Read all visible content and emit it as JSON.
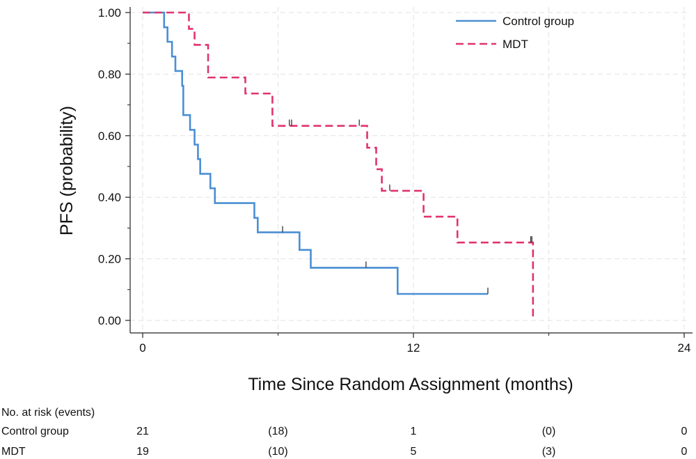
{
  "chart_data": {
    "type": "line",
    "title": "",
    "xlabel": "Time Since Random Assignment (months)",
    "ylabel": "PFS (probability)",
    "xlim": [
      0,
      24
    ],
    "ylim": [
      0,
      1
    ],
    "x_ticks": [
      0,
      12,
      24
    ],
    "x_minor_ticks": [
      6,
      18
    ],
    "y_ticks": [
      0.0,
      0.2,
      0.4,
      0.6,
      0.8,
      1.0
    ],
    "x_tick_labels": [
      "0",
      "12",
      "24"
    ],
    "y_tick_labels": [
      "0.00",
      "0.20",
      "0.40",
      "0.60",
      "0.80",
      "1.00"
    ],
    "grid": true,
    "legend_position": "top-right",
    "series": [
      {
        "name": "Control group",
        "style": "solid",
        "color": "#4a8fd4",
        "steps": [
          [
            0,
            1.0
          ],
          [
            0.95,
            0.952
          ],
          [
            1.1,
            0.905
          ],
          [
            1.3,
            0.857
          ],
          [
            1.45,
            0.81
          ],
          [
            1.75,
            0.762
          ],
          [
            1.8,
            0.667
          ],
          [
            2.1,
            0.619
          ],
          [
            2.3,
            0.571
          ],
          [
            2.45,
            0.524
          ],
          [
            2.55,
            0.476
          ],
          [
            3.0,
            0.429
          ],
          [
            3.2,
            0.381
          ],
          [
            4.95,
            0.333
          ],
          [
            5.1,
            0.286
          ],
          [
            6.95,
            0.229
          ],
          [
            7.45,
            0.171
          ],
          [
            11.3,
            0.086
          ],
          [
            15.3,
            0.086
          ]
        ],
        "censor_x": [
          6.2,
          9.9,
          15.3
        ]
      },
      {
        "name": "MDT",
        "style": "dashed",
        "color": "#e0336e",
        "steps": [
          [
            0,
            1.0
          ],
          [
            2.05,
            0.947
          ],
          [
            2.3,
            0.895
          ],
          [
            2.9,
            0.789
          ],
          [
            4.55,
            0.737
          ],
          [
            5.75,
            0.632
          ],
          [
            9.95,
            0.561
          ],
          [
            10.35,
            0.491
          ],
          [
            10.6,
            0.421
          ],
          [
            12.45,
            0.337
          ],
          [
            13.95,
            0.253
          ],
          [
            17.3,
            0.0
          ]
        ],
        "censor_x": [
          6.5,
          6.6,
          9.6,
          10.95,
          17.2,
          17.25
        ]
      }
    ],
    "risk_table": {
      "header": "No. at risk (events)",
      "columns_x": [
        0,
        6,
        12,
        18,
        24
      ],
      "rows": [
        {
          "label": "Control group",
          "values": [
            "21",
            "(18)",
            "1",
            "(0)",
            "0"
          ]
        },
        {
          "label": "MDT",
          "values": [
            "19",
            "(10)",
            "5",
            "(3)",
            "0"
          ]
        }
      ]
    }
  }
}
